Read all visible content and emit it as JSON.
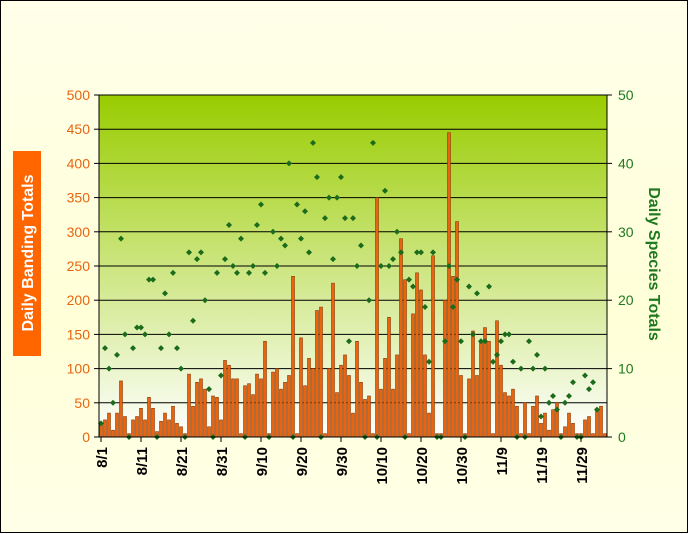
{
  "chart_data": {
    "type": "bar+scatter",
    "xlabel": "",
    "y_left": {
      "label": "Daily Banding Totals",
      "range": [
        0,
        500
      ],
      "ticks": [
        "0",
        "50",
        "100",
        "150",
        "200",
        "250",
        "300",
        "350",
        "400",
        "450",
        "500"
      ]
    },
    "y_right": {
      "label": "Daily Species Totals",
      "range": [
        0,
        50
      ],
      "ticks": [
        "0",
        "10",
        "20",
        "30",
        "40",
        "50"
      ]
    },
    "x_tick_labels": [
      "8/1",
      "8/11",
      "8/21",
      "8/31",
      "9/10",
      "9/20",
      "9/30",
      "10/10",
      "10/20",
      "10/30",
      "11/9",
      "11/19",
      "11/29"
    ],
    "x_tick_day_index": [
      0,
      10,
      20,
      30,
      40,
      50,
      60,
      70,
      80,
      90,
      100,
      110,
      120
    ],
    "grid": true,
    "colors": {
      "bar_fill": "#e8650f",
      "bar_edge": "#7a2f00",
      "marker": "#1b6b1b",
      "plot_bg_top": "#99cc00",
      "plot_bg_bottom": "#ffffff",
      "left_title_bg": "#ff6600",
      "left_axis_text": "#e8650f",
      "right_axis_text": "#1f7a1f"
    },
    "series": [
      {
        "name": "Daily Banding Totals",
        "type": "bar",
        "axis": "left",
        "values": [
          20,
          25,
          35,
          10,
          35,
          82,
          30,
          5,
          25,
          30,
          42,
          25,
          58,
          42,
          8,
          23,
          35,
          25,
          45,
          20,
          15,
          5,
          92,
          45,
          80,
          85,
          70,
          15,
          60,
          58,
          25,
          112,
          105,
          85,
          85,
          5,
          75,
          78,
          62,
          92,
          85,
          140,
          5,
          95,
          100,
          70,
          80,
          90,
          235,
          5,
          145,
          75,
          115,
          100,
          185,
          190,
          5,
          100,
          225,
          65,
          105,
          120,
          90,
          35,
          140,
          80,
          55,
          60,
          5,
          350,
          70,
          115,
          175,
          70,
          120,
          290,
          230,
          5,
          180,
          240,
          215,
          120,
          35,
          265,
          5,
          5,
          200,
          445,
          235,
          315,
          90,
          5,
          85,
          155,
          90,
          140,
          160,
          140,
          5,
          170,
          105,
          65,
          60,
          70,
          45,
          5,
          50,
          5,
          45,
          60,
          20,
          35,
          10,
          40,
          50,
          5,
          15,
          35,
          20,
          5,
          5,
          25,
          30,
          5,
          40,
          45,
          5
        ]
      },
      {
        "name": "Daily Species Totals",
        "type": "scatter",
        "axis": "right",
        "values": [
          2,
          13,
          10,
          5,
          12,
          29,
          15,
          0,
          13,
          16,
          16,
          15,
          23,
          23,
          0,
          13,
          21,
          15,
          24,
          13,
          10,
          0,
          27,
          17,
          26,
          27,
          20,
          7,
          0,
          24,
          9,
          26,
          31,
          25,
          24,
          29,
          0,
          24,
          25,
          31,
          34,
          24,
          0,
          30,
          25,
          29,
          28,
          40,
          0,
          34,
          29,
          33,
          27,
          43,
          38,
          0,
          32,
          35,
          26,
          35,
          38,
          32,
          14,
          32,
          25,
          28,
          0,
          20,
          43,
          0,
          25,
          36,
          25,
          26,
          30,
          27,
          0,
          23,
          22,
          27,
          27,
          19,
          11,
          27,
          0,
          0,
          14,
          25,
          19,
          23,
          14,
          0,
          22,
          15,
          21,
          14,
          14,
          22,
          11,
          12,
          14,
          15,
          15,
          11,
          0,
          10,
          0,
          14,
          10,
          12,
          3,
          10,
          5,
          6,
          4,
          0,
          5,
          6,
          8,
          0,
          0,
          9,
          7,
          8,
          4
        ]
      }
    ]
  }
}
